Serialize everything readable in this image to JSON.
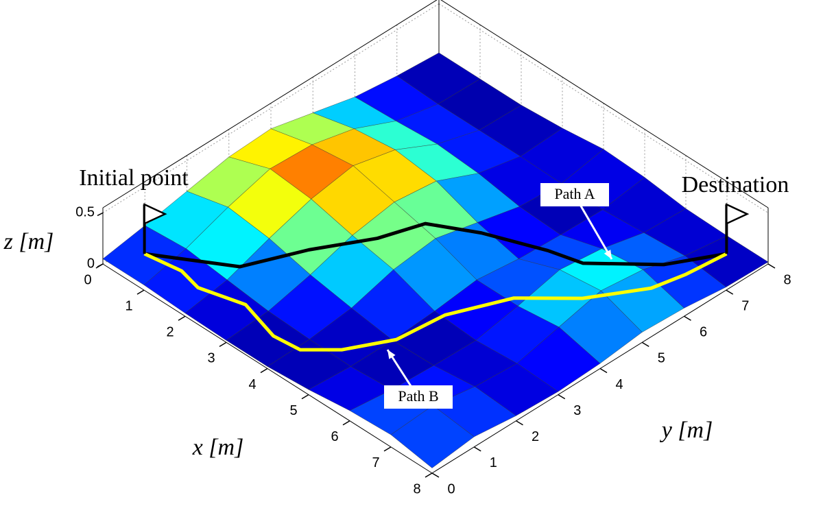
{
  "chart_data": {
    "type": "surface",
    "x": [
      0,
      1,
      2,
      3,
      4,
      5,
      6,
      7,
      8
    ],
    "y": [
      0,
      1,
      2,
      3,
      4,
      5,
      6,
      7,
      8
    ],
    "z": [
      [
        0.05,
        0.12,
        0.2,
        0.28,
        0.3,
        0.2,
        0.1,
        0.05,
        0.02
      ],
      [
        0.05,
        0.15,
        0.3,
        0.42,
        0.4,
        0.3,
        0.12,
        0.03,
        0.02
      ],
      [
        0.03,
        0.1,
        0.25,
        0.38,
        0.45,
        0.35,
        0.15,
        0.03,
        0.02
      ],
      [
        0.02,
        0.05,
        0.15,
        0.28,
        0.35,
        0.3,
        0.12,
        0.03,
        0.05
      ],
      [
        0.02,
        0.03,
        0.08,
        0.2,
        0.25,
        0.15,
        0.05,
        0.02,
        0.1
      ],
      [
        0.05,
        0.02,
        0.02,
        0.05,
        0.1,
        0.05,
        0.03,
        0.02,
        0.08
      ],
      [
        0.1,
        0.05,
        0.03,
        0.02,
        0.1,
        0.2,
        0.15,
        0.05,
        0.03
      ],
      [
        0.12,
        0.15,
        0.08,
        0.05,
        0.15,
        0.25,
        0.2,
        0.08,
        0.02
      ],
      [
        0.05,
        0.1,
        0.05,
        0.03,
        0.05,
        0.1,
        0.08,
        0.03,
        0.02
      ]
    ],
    "colormap": "jet",
    "xlim": [
      0,
      8
    ],
    "ylim": [
      0,
      8
    ],
    "zlim": [
      0,
      0.55
    ],
    "xticks": [
      0,
      1,
      2,
      3,
      4,
      5,
      6,
      7,
      8
    ],
    "yticks": [
      0,
      1,
      2,
      3,
      4,
      5,
      6,
      7,
      8
    ],
    "zticks": [
      0,
      0.5
    ],
    "xlabel": "x [m]",
    "ylabel": "y [m]",
    "zlabel": "z [m]",
    "grid": true,
    "paths": [
      {
        "name": "Path A",
        "color": "#000000",
        "x": [
          0.5,
          1.8,
          2.4,
          3.2,
          3.65,
          4.25,
          5.25,
          5.8,
          6.8,
          7.5
        ],
        "y": [
          0.5,
          1.5,
          2.55,
          3.4,
          4.1,
          4.85,
          5.45,
          5.75,
          6.7,
          7.5
        ],
        "z": [
          0.1,
          0.05,
          0.1,
          0.2,
          0.28,
          0.15,
          0.08,
          0.02,
          0.02,
          0.1
        ]
      },
      {
        "name": "Path B",
        "color": "#ffff00",
        "x": [
          0.5,
          1.24,
          1.7,
          2.6,
          3.5,
          4.07,
          4.57,
          5.03,
          5.16,
          5.7,
          6.53,
          7.16,
          7.31,
          7.5
        ],
        "y": [
          0.5,
          0.66,
          0.6,
          0.85,
          0.63,
          0.71,
          1.21,
          2.06,
          3.09,
          4.2,
          5.02,
          6.04,
          6.72,
          7.5
        ],
        "z": [
          0.1,
          0.08,
          0.05,
          0.05,
          0.03,
          0.02,
          0.02,
          0.02,
          0.03,
          0.05,
          0.05,
          0.05,
          0.05,
          0.1
        ]
      }
    ],
    "annotations": [
      "Initial point",
      "Destination"
    ]
  }
}
